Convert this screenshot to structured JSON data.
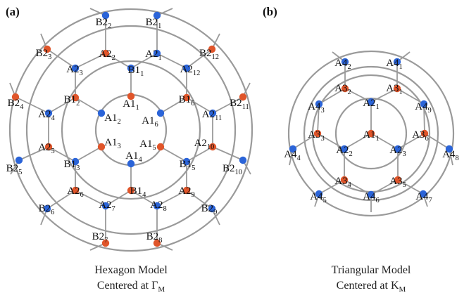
{
  "panels": [
    {
      "id": "a",
      "tag": "(a)",
      "caption_line1": "Hexagon Model",
      "caption_line2_prefix": "Centered at Γ",
      "caption_line2_sub": "M",
      "colors": {
        "A": "#e0552a",
        "B": "#2b64d8"
      },
      "nodes": [
        {
          "base": "A1",
          "sub": "1",
          "type": "A"
        },
        {
          "base": "A1",
          "sub": "2",
          "type": "B"
        },
        {
          "base": "A1",
          "sub": "3",
          "type": "A"
        },
        {
          "base": "A1",
          "sub": "4",
          "type": "B"
        },
        {
          "base": "A1",
          "sub": "5",
          "type": "A"
        },
        {
          "base": "A1",
          "sub": "6",
          "type": "B"
        },
        {
          "base": "B1",
          "sub": "1",
          "type": "B"
        },
        {
          "base": "B1",
          "sub": "2",
          "type": "A"
        },
        {
          "base": "B1",
          "sub": "3",
          "type": "B"
        },
        {
          "base": "B1",
          "sub": "4",
          "type": "A"
        },
        {
          "base": "B1",
          "sub": "5",
          "type": "B"
        },
        {
          "base": "B1",
          "sub": "6",
          "type": "A"
        },
        {
          "base": "A2",
          "sub": "1",
          "type": "B"
        },
        {
          "base": "A2",
          "sub": "2",
          "type": "A"
        },
        {
          "base": "A2",
          "sub": "3",
          "type": "B"
        },
        {
          "base": "A2",
          "sub": "4",
          "type": "B"
        },
        {
          "base": "A2",
          "sub": "5",
          "type": "A"
        },
        {
          "base": "A2",
          "sub": "6",
          "type": "A"
        },
        {
          "base": "A2",
          "sub": "7",
          "type": "B"
        },
        {
          "base": "A2",
          "sub": "8",
          "type": "B"
        },
        {
          "base": "A2",
          "sub": "9",
          "type": "A"
        },
        {
          "base": "A2",
          "sub": "10",
          "type": "A"
        },
        {
          "base": "A2",
          "sub": "11",
          "type": "B"
        },
        {
          "base": "A2",
          "sub": "12",
          "type": "B"
        },
        {
          "base": "B2",
          "sub": "1",
          "type": "B"
        },
        {
          "base": "B2",
          "sub": "2",
          "type": "B"
        },
        {
          "base": "B2",
          "sub": "3",
          "type": "A"
        },
        {
          "base": "B2",
          "sub": "4",
          "type": "A"
        },
        {
          "base": "B2",
          "sub": "5",
          "type": "B"
        },
        {
          "base": "B2",
          "sub": "6",
          "type": "B"
        },
        {
          "base": "B2",
          "sub": "7",
          "type": "A"
        },
        {
          "base": "B2",
          "sub": "8",
          "type": "A"
        },
        {
          "base": "B2",
          "sub": "9",
          "type": "B"
        },
        {
          "base": "B2",
          "sub": "10",
          "type": "B"
        },
        {
          "base": "B2",
          "sub": "11",
          "type": "A"
        },
        {
          "base": "B2",
          "sub": "12",
          "type": "A"
        }
      ]
    },
    {
      "id": "b",
      "tag": "(b)",
      "caption_line1": "Triangular Model",
      "caption_line2_prefix": "Centered at K",
      "caption_line2_sub": "M",
      "colors": {
        "A": "#e0552a",
        "B": "#2b64d8"
      },
      "nodes": [
        {
          "base": "A1",
          "sub": "1",
          "type": "A"
        },
        {
          "base": "A2",
          "sub": "1",
          "type": "B"
        },
        {
          "base": "A2",
          "sub": "2",
          "type": "B"
        },
        {
          "base": "A2",
          "sub": "3",
          "type": "B"
        },
        {
          "base": "A3",
          "sub": "1",
          "type": "A"
        },
        {
          "base": "A3",
          "sub": "2",
          "type": "A"
        },
        {
          "base": "A3",
          "sub": "3",
          "type": "A"
        },
        {
          "base": "A3",
          "sub": "4",
          "type": "A"
        },
        {
          "base": "A3",
          "sub": "5",
          "type": "A"
        },
        {
          "base": "A3",
          "sub": "6",
          "type": "A"
        },
        {
          "base": "A4",
          "sub": "1",
          "type": "B"
        },
        {
          "base": "A4",
          "sub": "2",
          "type": "B"
        },
        {
          "base": "A4",
          "sub": "3",
          "type": "B"
        },
        {
          "base": "A4",
          "sub": "4",
          "type": "B"
        },
        {
          "base": "A4",
          "sub": "5",
          "type": "B"
        },
        {
          "base": "A4",
          "sub": "6",
          "type": "B"
        },
        {
          "base": "A4",
          "sub": "7",
          "type": "B"
        },
        {
          "base": "A4",
          "sub": "8",
          "type": "B"
        },
        {
          "base": "A4",
          "sub": "9",
          "type": "B"
        }
      ]
    }
  ]
}
